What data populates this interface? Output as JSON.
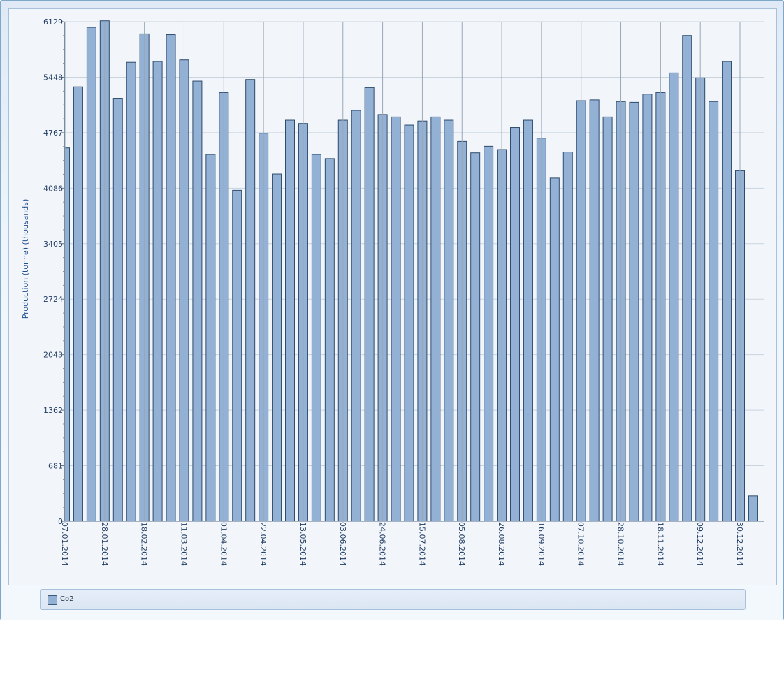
{
  "chart_data": {
    "type": "bar",
    "ylabel": "Production (tonne) (thousands)",
    "ylim": [
      0,
      6129
    ],
    "yticks": [
      0,
      681,
      1362,
      2043,
      2724,
      3405,
      4086,
      4767,
      5448,
      6129
    ],
    "xtick_labels": [
      "07.01.2014",
      "28.01.2014",
      "18.02.2014",
      "11.03.2014",
      "01.04.2014",
      "22.04.2014",
      "13.05.2014",
      "03.06.2014",
      "24.06.2014",
      "15.07.2014",
      "05.08.2014",
      "26.08.2014",
      "16.09.2014",
      "07.10.2014",
      "28.10.2014",
      "18.11.2014",
      "09.12.2014",
      "30.12.2014"
    ],
    "grid": true,
    "legend_position": "bottom",
    "series": [
      {
        "name": "Co2",
        "color": "#93b1d5",
        "values": [
          4580,
          5330,
          6060,
          6140,
          5190,
          5630,
          5980,
          5640,
          5970,
          5660,
          5400,
          4500,
          5260,
          4060,
          5420,
          4760,
          4260,
          4920,
          4880,
          4500,
          4450,
          4920,
          5040,
          5320,
          4990,
          4960,
          4860,
          4910,
          4960,
          4920,
          4660,
          4520,
          4600,
          4560,
          4830,
          4920,
          4700,
          4210,
          4530,
          5160,
          5170,
          4960,
          5150,
          5140,
          5240,
          5260,
          5500,
          5960,
          5440,
          5150,
          5640,
          4300,
          310
        ]
      }
    ]
  }
}
